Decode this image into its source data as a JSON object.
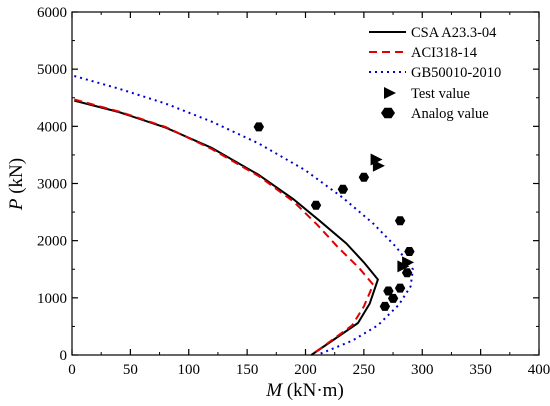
{
  "chart_data": {
    "type": "scatter",
    "xlabel": {
      "symbol": "M",
      "unit": " (kN·m)"
    },
    "ylabel": {
      "symbol": "P",
      "unit": " (kN)"
    },
    "xlim": [
      0,
      400
    ],
    "ylim": [
      0,
      6000
    ],
    "xticks": [
      0,
      50,
      100,
      150,
      200,
      250,
      300,
      350,
      400
    ],
    "yticks": [
      0,
      1000,
      2000,
      3000,
      4000,
      5000,
      6000
    ],
    "grid": false,
    "legend_position": "top-right",
    "series": [
      {
        "name": "CSA A23.3-04",
        "kind": "line",
        "style": "solid",
        "color": "#000000",
        "points": [
          [
            2,
            4450
          ],
          [
            40,
            4250
          ],
          [
            80,
            3980
          ],
          [
            120,
            3620
          ],
          [
            160,
            3150
          ],
          [
            190,
            2720
          ],
          [
            212,
            2350
          ],
          [
            235,
            1950
          ],
          [
            250,
            1620
          ],
          [
            262,
            1320
          ],
          [
            255,
            900
          ],
          [
            245,
            560
          ],
          [
            225,
            280
          ],
          [
            205,
            0
          ]
        ]
      },
      {
        "name": "ACI318-14",
        "kind": "line",
        "style": "dashed",
        "color": "#e00000",
        "points": [
          [
            2,
            4470
          ],
          [
            40,
            4260
          ],
          [
            80,
            3990
          ],
          [
            120,
            3600
          ],
          [
            160,
            3130
          ],
          [
            190,
            2680
          ],
          [
            210,
            2280
          ],
          [
            228,
            1880
          ],
          [
            246,
            1520
          ],
          [
            258,
            1230
          ],
          [
            250,
            850
          ],
          [
            240,
            520
          ],
          [
            222,
            250
          ],
          [
            205,
            0
          ]
        ]
      },
      {
        "name": "GB50010-2010",
        "kind": "line",
        "style": "dotted",
        "color": "#0000cc",
        "points": [
          [
            2,
            4880
          ],
          [
            40,
            4660
          ],
          [
            80,
            4400
          ],
          [
            120,
            4080
          ],
          [
            160,
            3700
          ],
          [
            200,
            3230
          ],
          [
            232,
            2750
          ],
          [
            258,
            2300
          ],
          [
            278,
            1880
          ],
          [
            292,
            1500
          ],
          [
            290,
            1200
          ],
          [
            280,
            880
          ],
          [
            262,
            520
          ],
          [
            240,
            250
          ],
          [
            210,
            0
          ]
        ]
      },
      {
        "name": "Test value",
        "kind": "marker",
        "marker": "triangle-right",
        "color": "#000000",
        "points": [
          [
            260,
            3420
          ],
          [
            262,
            3310
          ],
          [
            283,
            1550
          ],
          [
            287,
            1620
          ]
        ]
      },
      {
        "name": "Analog value",
        "kind": "marker",
        "marker": "hexagon",
        "color": "#000000",
        "points": [
          [
            160,
            3990
          ],
          [
            209,
            2620
          ],
          [
            232,
            2900
          ],
          [
            250,
            3110
          ],
          [
            281,
            2350
          ],
          [
            289,
            1810
          ],
          [
            287,
            1440
          ],
          [
            281,
            1170
          ],
          [
            275,
            990
          ],
          [
            271,
            1120
          ],
          [
            268,
            850
          ]
        ]
      }
    ]
  }
}
